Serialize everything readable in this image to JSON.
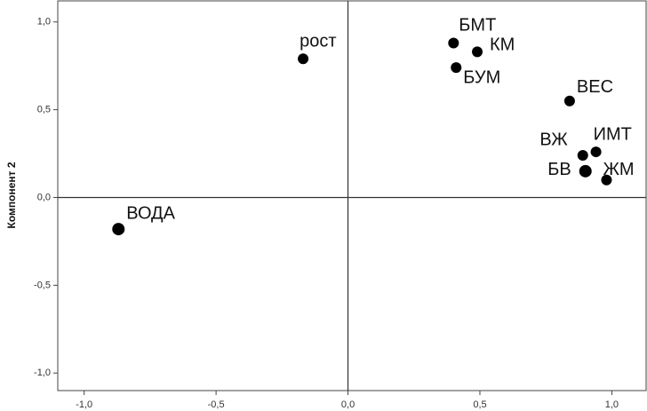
{
  "chart_data": {
    "type": "scatter",
    "y_label": "Компонент 2",
    "labels": [
      "рост",
      "БМТ",
      "КМ",
      "БУМ",
      "ВЕС",
      "ИМТ",
      "ВЖ",
      "БВ",
      "ЖМ",
      "ВОДА"
    ],
    "x": [
      -0.17,
      0.4,
      0.49,
      0.41,
      0.84,
      0.94,
      0.89,
      0.9,
      0.98,
      -0.87
    ],
    "values": [
      0.79,
      0.88,
      0.83,
      0.74,
      0.55,
      0.26,
      0.24,
      0.15,
      0.1,
      -0.18
    ],
    "color": "#000000",
    "xlim": [
      -1.1,
      1.13
    ],
    "ylim": [
      -1.1,
      1.12
    ],
    "xticks": [
      {
        "value": -1.0,
        "label": "-1,0"
      },
      {
        "value": -0.5,
        "label": "-0,5"
      },
      {
        "value": 0.0,
        "label": "0,0"
      },
      {
        "value": 0.5,
        "label": "0,5"
      },
      {
        "value": 1.0,
        "label": "1,0"
      }
    ],
    "yticks": [
      {
        "value": -1.0,
        "label": "-1,0"
      },
      {
        "value": -0.5,
        "label": "-0,5"
      },
      {
        "value": 0.0,
        "label": "0,0"
      },
      {
        "value": 0.5,
        "label": "0,5"
      },
      {
        "value": 1.0,
        "label": "1,0"
      }
    ]
  }
}
